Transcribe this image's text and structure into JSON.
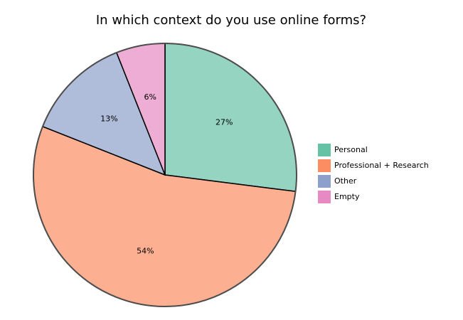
{
  "chart_data": {
    "type": "pie",
    "title": "In which context do you use online forms?",
    "categories": [
      "Personal",
      "Professional + Research",
      "Other",
      "Empty"
    ],
    "values": [
      27,
      54,
      13,
      6
    ],
    "value_labels": [
      "27%",
      "54%",
      "13%",
      "6%"
    ],
    "colors": [
      "#66c2a5",
      "#fc8d62",
      "#8da0cb",
      "#e78ac3"
    ],
    "start_angle_deg": 90,
    "direction": "clockwise",
    "legend_placement": "right"
  }
}
